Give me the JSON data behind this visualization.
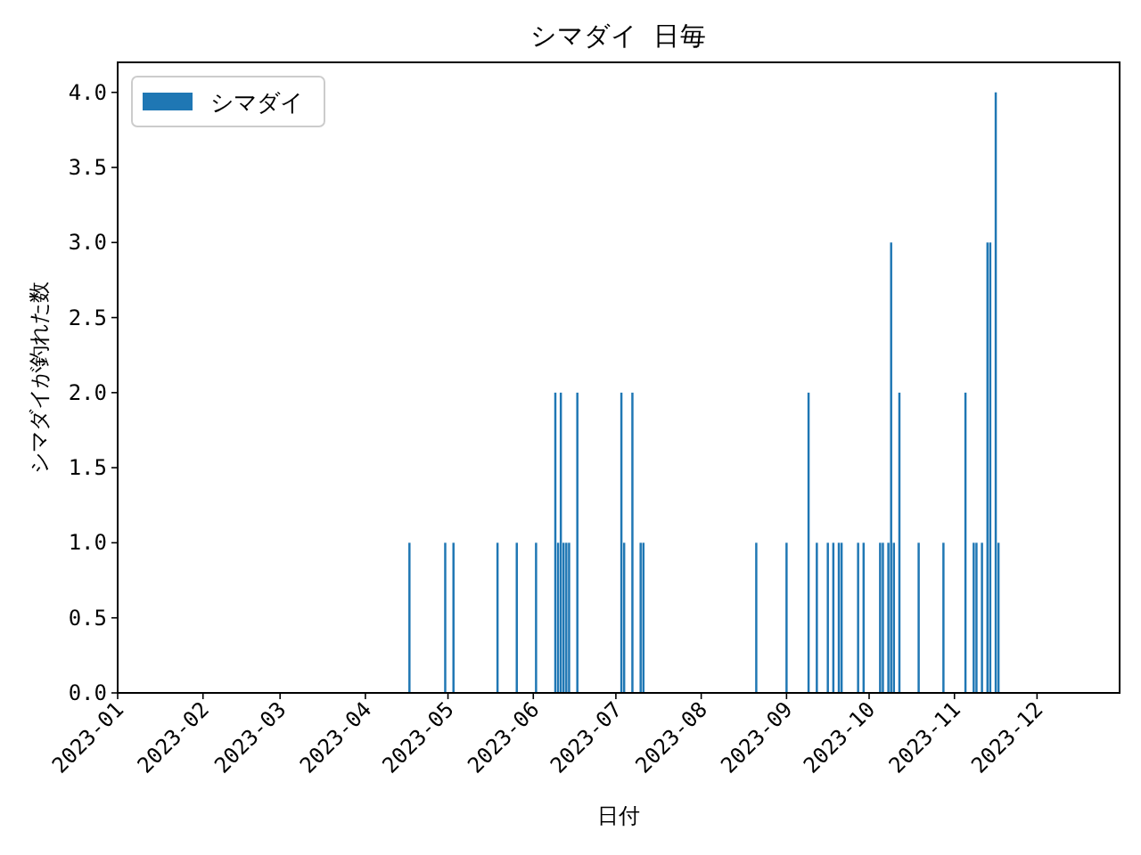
{
  "chart_data": {
    "type": "bar",
    "title": "シマダイ 日毎",
    "xlabel": "日付",
    "ylabel": "シマダイが釣れた数",
    "x": [
      "2023-04-17",
      "2023-04-30",
      "2023-05-03",
      "2023-05-19",
      "2023-05-26",
      "2023-06-02",
      "2023-06-09",
      "2023-06-10",
      "2023-06-11",
      "2023-06-12",
      "2023-06-13",
      "2023-06-14",
      "2023-06-17",
      "2023-07-03",
      "2023-07-04",
      "2023-07-07",
      "2023-07-10",
      "2023-07-11",
      "2023-08-21",
      "2023-09-01",
      "2023-09-09",
      "2023-09-12",
      "2023-09-16",
      "2023-09-18",
      "2023-09-20",
      "2023-09-21",
      "2023-09-27",
      "2023-09-29",
      "2023-10-05",
      "2023-10-06",
      "2023-10-08",
      "2023-10-09",
      "2023-10-10",
      "2023-10-12",
      "2023-10-19",
      "2023-10-28",
      "2023-11-05",
      "2023-11-08",
      "2023-11-09",
      "2023-11-11",
      "2023-11-13",
      "2023-11-14",
      "2023-11-16",
      "2023-11-17"
    ],
    "series": [
      {
        "name": "シマダイ",
        "color": "#1f77b4",
        "values": [
          1,
          1,
          1,
          1,
          1,
          1,
          2,
          1,
          2,
          1,
          1,
          1,
          2,
          2,
          1,
          2,
          1,
          1,
          1,
          1,
          2,
          1,
          1,
          1,
          1,
          1,
          1,
          1,
          1,
          1,
          1,
          3,
          1,
          2,
          1,
          1,
          2,
          1,
          1,
          1,
          3,
          3,
          4,
          1
        ]
      }
    ],
    "xlim": [
      "2023-01-01",
      "2023-12-31"
    ],
    "xticks": [
      {
        "value": "2023-01-01",
        "label": "2023-01"
      },
      {
        "value": "2023-02-01",
        "label": "2023-02"
      },
      {
        "value": "2023-03-01",
        "label": "2023-03"
      },
      {
        "value": "2023-04-01",
        "label": "2023-04"
      },
      {
        "value": "2023-05-01",
        "label": "2023-05"
      },
      {
        "value": "2023-06-01",
        "label": "2023-06"
      },
      {
        "value": "2023-07-01",
        "label": "2023-07"
      },
      {
        "value": "2023-08-01",
        "label": "2023-08"
      },
      {
        "value": "2023-09-01",
        "label": "2023-09"
      },
      {
        "value": "2023-10-01",
        "label": "2023-10"
      },
      {
        "value": "2023-11-01",
        "label": "2023-11"
      },
      {
        "value": "2023-12-01",
        "label": "2023-12"
      }
    ],
    "ylim": [
      0,
      4.2
    ],
    "yticks": [
      {
        "value": 0,
        "label": "0.0"
      },
      0.5,
      {
        "value": 1,
        "label": "1.0"
      },
      1.5,
      {
        "value": 2,
        "label": "2.0"
      },
      2.5,
      {
        "value": 3,
        "label": "3.0"
      },
      3.5,
      {
        "value": 4,
        "label": "4.0"
      }
    ],
    "legend": "top left",
    "grid": false
  }
}
